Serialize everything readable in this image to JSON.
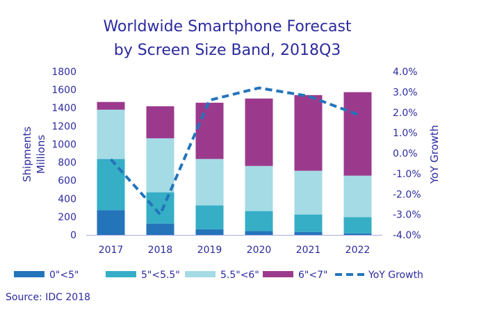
{
  "chart_data": {
    "type": "bar",
    "stacked": true,
    "title": "Worldwide Smartphone Forecast",
    "subtitle": "by Screen Size Band, 2018Q3",
    "ylabel": "Shipments Millions",
    "ylabel_lines": [
      "Shipments",
      "Millions"
    ],
    "y2label": "YoY Growth",
    "ylim": [
      0,
      1800
    ],
    "y2lim": [
      -4,
      4
    ],
    "yticks": [
      "0",
      "200",
      "400",
      "600",
      "800",
      "1000",
      "1200",
      "1400",
      "1600",
      "1800"
    ],
    "y2ticks": [
      "-4.0%",
      "-3.0%",
      "-2.0%",
      "-1.0%",
      "0.0%",
      "1.0%",
      "2.0%",
      "3.0%",
      "4.0%"
    ],
    "grid": false,
    "legend_position": "bottom",
    "categories": [
      "2017",
      "2018",
      "2019",
      "2020",
      "2021",
      "2022"
    ],
    "series": [
      {
        "name": "0\"<5\"",
        "color": "#2474BA",
        "values": [
          273,
          125,
          63,
          43,
          33,
          17
        ]
      },
      {
        "name": "5\"<5.5\"",
        "color": "#35AEC6",
        "values": [
          564,
          345,
          262,
          220,
          192,
          178
        ]
      },
      {
        "name": "5.5\"<6\"",
        "color": "#A4DBE5",
        "values": [
          543,
          595,
          512,
          497,
          482,
          458
        ]
      },
      {
        "name": "6\"<7\"",
        "color": "#9B3A8D",
        "values": [
          85,
          353,
          620,
          743,
          834,
          920
        ]
      }
    ],
    "line_series": {
      "name": "YoY Growth",
      "color": "#2474BA",
      "style": "dashed",
      "axis": "right",
      "values": [
        -0.3,
        -3.0,
        2.6,
        3.2,
        2.8,
        1.9
      ]
    },
    "source": "Source: IDC 2018"
  }
}
